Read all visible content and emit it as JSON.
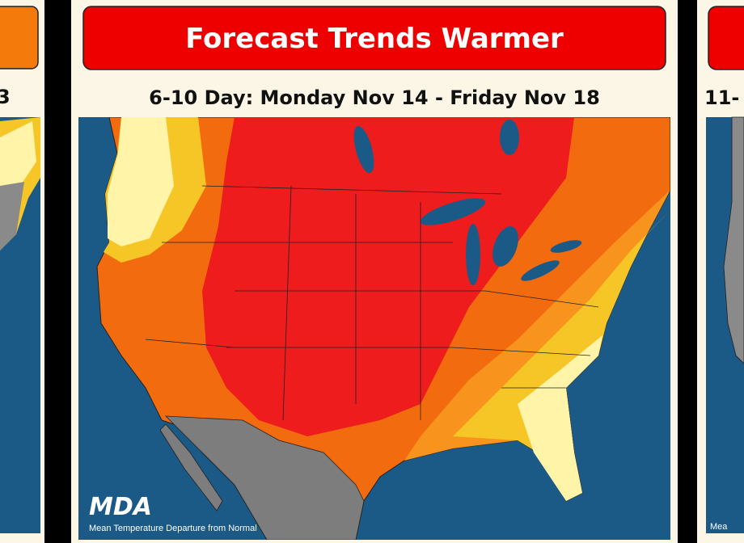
{
  "panels": [
    {
      "subtitle_fragment": "3"
    },
    {
      "header": "Forecast Trends Warmer",
      "subtitle": "6-10 Day: Monday Nov 14 - Friday Nov 18",
      "logo": "MDA",
      "caption": "Mean Temperature Departure from Normal"
    },
    {
      "subtitle_fragment": "11-",
      "caption_fragment": "Mea"
    }
  ]
}
